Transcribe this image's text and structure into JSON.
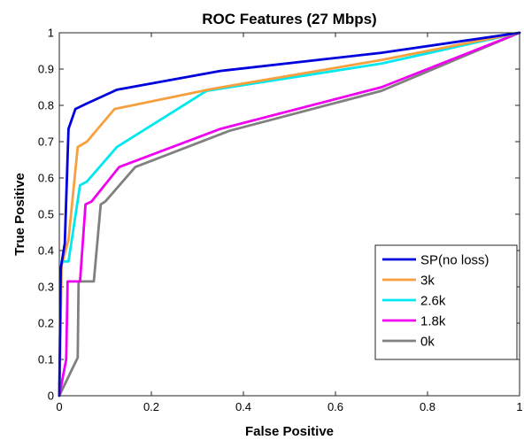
{
  "chart_data": {
    "type": "line",
    "title": "ROC Features (27 Mbps)",
    "xlabel": "False Positive",
    "ylabel": "True Positive",
    "xlim": [
      0,
      1
    ],
    "ylim": [
      0,
      1
    ],
    "xticks": [
      0,
      0.2,
      0.4,
      0.6,
      0.8,
      1
    ],
    "xtick_labels": [
      "0",
      "0.2",
      "0.4",
      "0.6",
      "0.8",
      "1"
    ],
    "yticks": [
      0,
      0.1,
      0.2,
      0.3,
      0.4,
      0.5,
      0.6,
      0.7,
      0.8,
      0.9,
      1
    ],
    "ytick_labels": [
      "0",
      "0.1",
      "0.2",
      "0.3",
      "0.4",
      "0.5",
      "0.6",
      "0.7",
      "0.8",
      "0.9",
      "1"
    ],
    "grid": false,
    "legend_position": "bottom-right",
    "series": [
      {
        "name": "SP(no loss)",
        "color": "#0000dd",
        "points": [
          [
            0,
            0
          ],
          [
            0.003,
            0.35
          ],
          [
            0.012,
            0.42
          ],
          [
            0.02,
            0.735
          ],
          [
            0.035,
            0.79
          ],
          [
            0.06,
            0.805
          ],
          [
            0.125,
            0.843
          ],
          [
            0.35,
            0.895
          ],
          [
            0.7,
            0.945
          ],
          [
            1,
            1
          ]
        ]
      },
      {
        "name": "3k",
        "color": "#f7a040",
        "points": [
          [
            0,
            0
          ],
          [
            0.005,
            0.36
          ],
          [
            0.02,
            0.43
          ],
          [
            0.04,
            0.685
          ],
          [
            0.06,
            0.7
          ],
          [
            0.12,
            0.79
          ],
          [
            0.33,
            0.845
          ],
          [
            0.7,
            0.925
          ],
          [
            1,
            1
          ]
        ]
      },
      {
        "name": "2.6k",
        "color": "#00e8f0",
        "points": [
          [
            0,
            0
          ],
          [
            0.005,
            0.37
          ],
          [
            0.02,
            0.37
          ],
          [
            0.045,
            0.58
          ],
          [
            0.06,
            0.59
          ],
          [
            0.125,
            0.685
          ],
          [
            0.32,
            0.84
          ],
          [
            0.7,
            0.915
          ],
          [
            1,
            1
          ]
        ]
      },
      {
        "name": "1.8k",
        "color": "#f000f0",
        "points": [
          [
            0,
            0
          ],
          [
            0.015,
            0.1
          ],
          [
            0.018,
            0.315
          ],
          [
            0.045,
            0.315
          ],
          [
            0.057,
            0.527
          ],
          [
            0.07,
            0.535
          ],
          [
            0.13,
            0.63
          ],
          [
            0.35,
            0.735
          ],
          [
            0.7,
            0.85
          ],
          [
            1,
            1
          ]
        ]
      },
      {
        "name": "0k",
        "color": "#808080",
        "points": [
          [
            0,
            0
          ],
          [
            0.04,
            0.105
          ],
          [
            0.042,
            0.315
          ],
          [
            0.075,
            0.315
          ],
          [
            0.09,
            0.527
          ],
          [
            0.1,
            0.535
          ],
          [
            0.165,
            0.63
          ],
          [
            0.37,
            0.73
          ],
          [
            0.7,
            0.84
          ],
          [
            1,
            1
          ]
        ]
      }
    ]
  }
}
